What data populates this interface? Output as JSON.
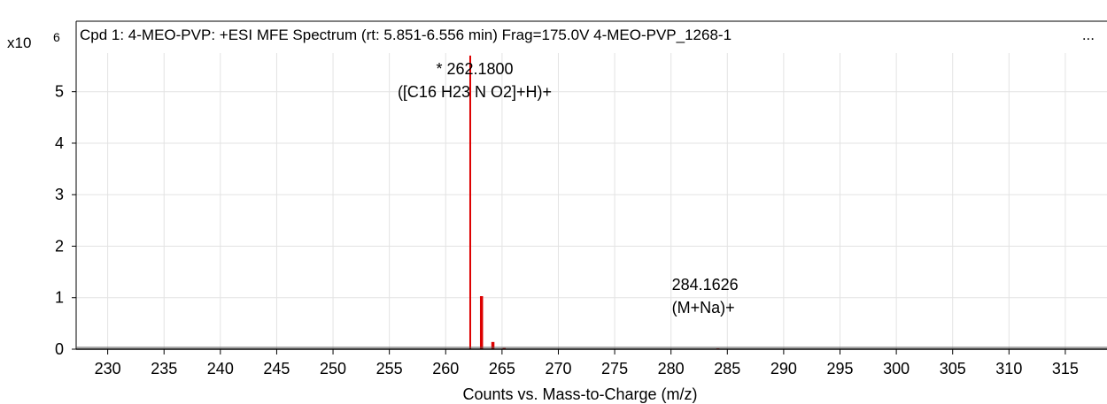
{
  "chart_data": {
    "type": "bar",
    "title": "Cpd 1: 4-MEO-PVP: +ESI MFE Spectrum (rt: 5.851-6.556 min) Frag=175.0V 4-MEO-PVP_1268-1",
    "title_overflow": "...",
    "xlabel": "Counts vs. Mass-to-Charge (m/z)",
    "ylabel": "",
    "y_scale_base": "x10",
    "y_scale_exponent": "6",
    "xlim": [
      227.2,
      318.7
    ],
    "ylim": [
      0,
      5.75
    ],
    "x_ticks": [
      230,
      235,
      240,
      245,
      250,
      255,
      260,
      265,
      270,
      275,
      280,
      285,
      290,
      295,
      300,
      305,
      310,
      315
    ],
    "y_ticks": [
      0,
      1,
      2,
      3,
      4,
      5
    ],
    "grid": true,
    "series": [
      {
        "peaks": [
          {
            "mz": 262.18,
            "intensity": 5.7
          },
          {
            "mz": 263.18,
            "intensity": 1.03
          },
          {
            "mz": 264.19,
            "intensity": 0.14
          },
          {
            "mz": 265.19,
            "intensity": 0.02
          },
          {
            "mz": 284.16,
            "intensity": 0.015
          }
        ],
        "color": "#dd0000"
      }
    ],
    "annotations": [
      {
        "lines": [
          "* 262.1800",
          "([C16 H23 N O2]+H)+"
        ],
        "mz": 262.18,
        "intensity": 5.2
      },
      {
        "lines": [
          "284.1626",
          "(M+Na)+"
        ],
        "mz": 284.16,
        "intensity": 1.05
      }
    ]
  }
}
